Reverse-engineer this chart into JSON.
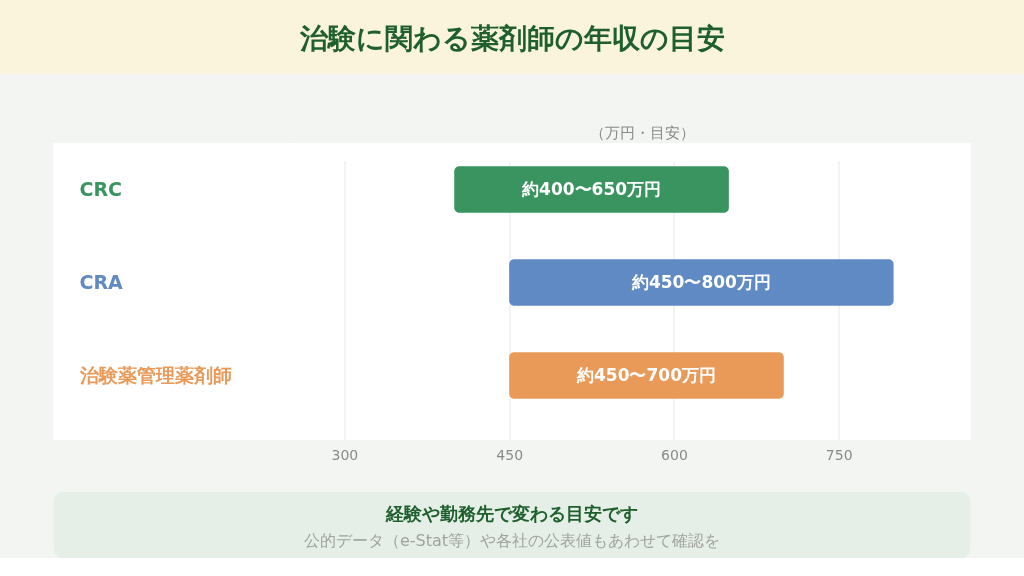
{
  "chart_data": {
    "type": "bar",
    "orientation": "horizontal",
    "title": "治験に関わる薬剤師の年収の目安",
    "xlabel": "（万円・目安）",
    "categories": [
      "CRC",
      "CRA",
      "治験薬管理薬剤師"
    ],
    "base": [
      400,
      450,
      450
    ],
    "values": [
      250,
      350,
      250
    ],
    "colors": [
      "#3a9460",
      "#5f8ac4",
      "#e99a58"
    ],
    "value_labels": [
      "約400〜650万円",
      "約450〜800万円",
      "約450〜700万円"
    ],
    "xlim": [
      250,
      870
    ],
    "xticks": [
      300,
      450,
      600,
      750
    ],
    "grid": "x",
    "annotations": [
      "経験や勤務先で変わる目安です",
      "公的データ（e-Stat等）や各社の公表値もあわせて確認を"
    ]
  }
}
